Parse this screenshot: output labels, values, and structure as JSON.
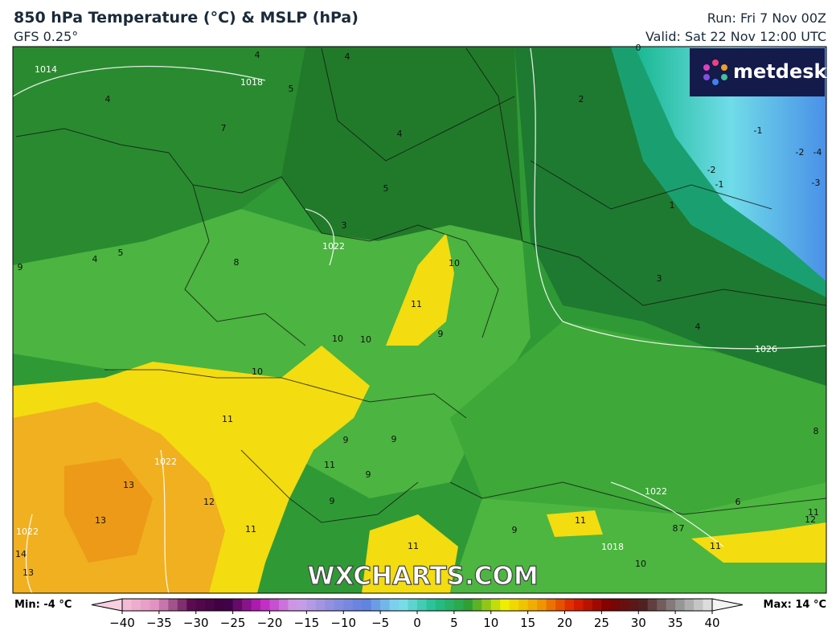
{
  "header": {
    "title": "850 hPa Temperature (°C) & MSLP (hPa)",
    "model": "GFS 0.25°",
    "run": "Run: Fri 7 Nov 00Z",
    "valid": "Valid: Sat 22 Nov 12:00 UTC"
  },
  "logo": "metdesk",
  "watermark": "WXCHARTS.COM",
  "map": {
    "temperature_labels": [
      "4",
      "4",
      "5",
      "7",
      "4",
      "5",
      "4",
      "8",
      "9",
      "5",
      "4",
      "3",
      "10",
      "11",
      "10",
      "10",
      "9",
      "10",
      "11",
      "9",
      "9",
      "11",
      "13",
      "13",
      "12",
      "11",
      "14",
      "13",
      "9",
      "11",
      "9",
      "11",
      "9",
      "10",
      "11",
      "12",
      "11",
      "8",
      "7",
      "3",
      "2",
      "1",
      "-1",
      "-2",
      "-1",
      "-2",
      "-4",
      "-3",
      "4",
      "6",
      "8",
      "0"
    ],
    "isobar_labels": [
      "1014",
      "1018",
      "1022",
      "1022",
      "1026",
      "1022",
      "1018",
      "1022"
    ]
  },
  "colorbar": {
    "min_label": "Min: -4 °C",
    "max_label": "Max: 14 °C",
    "ticks": [
      {
        "value": -40,
        "label": "−40"
      },
      {
        "value": -35,
        "label": "−35"
      },
      {
        "value": -30,
        "label": "−30"
      },
      {
        "value": -25,
        "label": "−25"
      },
      {
        "value": -20,
        "label": "−20"
      },
      {
        "value": -15,
        "label": "−15"
      },
      {
        "value": -10,
        "label": "−10"
      },
      {
        "value": -5,
        "label": "−5"
      },
      0,
      5,
      10,
      15,
      20,
      25,
      30,
      35,
      40
    ]
  }
}
